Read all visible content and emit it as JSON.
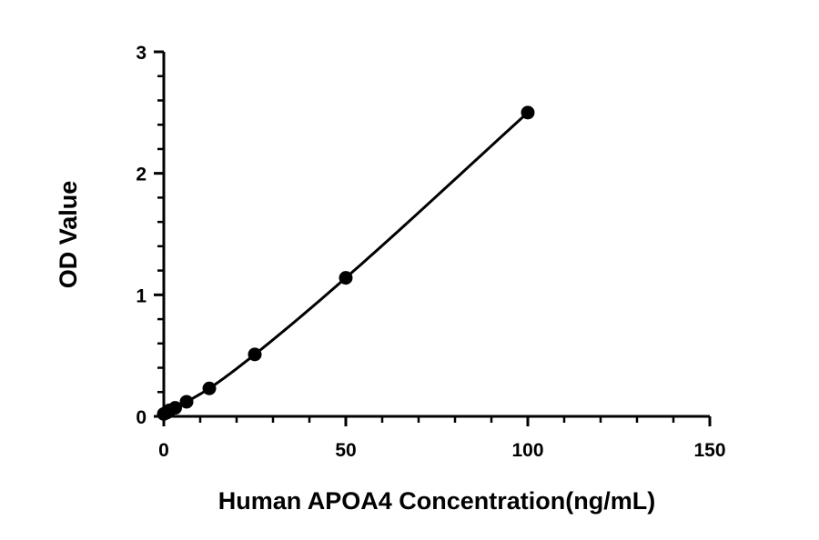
{
  "chart_data": {
    "type": "scatter",
    "title": "",
    "xlabel": "Human APOA4 Concentration(ng/mL)",
    "ylabel": "OD Value",
    "xlim": [
      0,
      150
    ],
    "ylim": [
      0,
      3
    ],
    "x_major_ticks": [
      0,
      50,
      100,
      150
    ],
    "x_minor_ticks": [
      10,
      20,
      30,
      40,
      60,
      70,
      80,
      90,
      110,
      120,
      130,
      140
    ],
    "y_major_ticks": [
      0,
      1,
      2,
      3
    ],
    "y_minor_ticks": [
      0.2,
      0.4,
      0.6,
      0.8,
      1.2,
      1.4,
      1.6,
      1.8,
      2.2,
      2.4,
      2.6,
      2.8
    ],
    "grid": false,
    "legend": "none",
    "fit_line": true,
    "series": [
      {
        "x": [
          0,
          0.78,
          1.56,
          3.13,
          6.25,
          12.5,
          25,
          50,
          100
        ],
        "y": [
          0.02,
          0.03,
          0.05,
          0.07,
          0.12,
          0.23,
          0.51,
          1.14,
          2.5
        ]
      }
    ],
    "colors": {
      "marker": "#000000",
      "line": "#000000",
      "axis": "#000000"
    }
  }
}
